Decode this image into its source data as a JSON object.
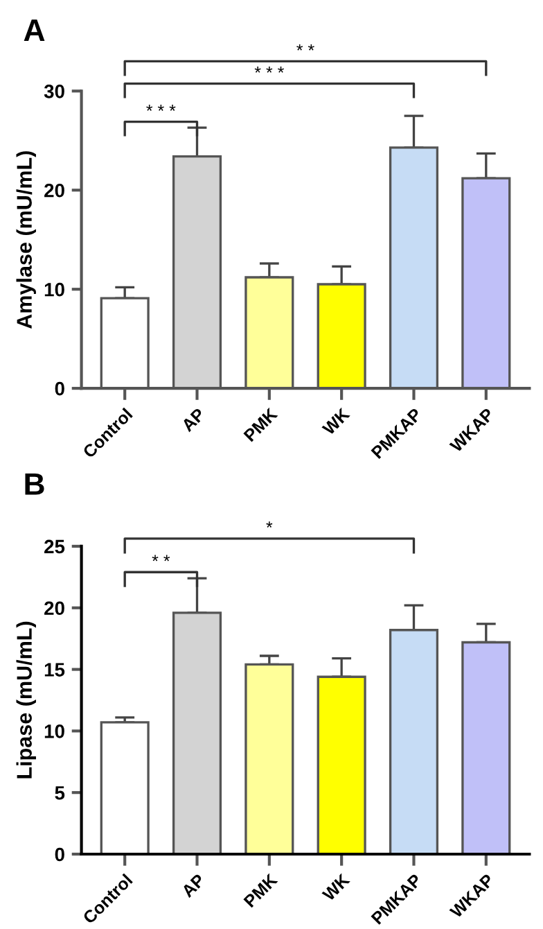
{
  "chart_data": [
    {
      "type": "bar",
      "title": "A",
      "ylabel": "Amylase (mU/mL)",
      "categories": [
        "Control",
        "AP",
        "PMK",
        "WK",
        "PMKAP",
        "WKAP"
      ],
      "values": [
        9.1,
        23.4,
        11.2,
        10.5,
        24.3,
        21.2
      ],
      "colors": [
        "#ffffff",
        "#d3d3d3",
        "#ffff99",
        "#ffff00",
        "#c6dcf5",
        "#c0c0f8"
      ],
      "errors": [
        [
          9.1,
          10.2
        ],
        [
          23.4,
          26.3
        ],
        [
          11.2,
          12.6
        ],
        [
          10.5,
          12.3
        ],
        [
          24.3,
          27.5
        ],
        [
          21.2,
          23.7
        ]
      ],
      "ylim": [
        0,
        30
      ],
      "yticks": [
        0,
        10,
        20,
        30
      ],
      "grid": false,
      "legend": false,
      "annotations": [
        "* * *",
        "* * *",
        "* *"
      ]
    },
    {
      "type": "bar",
      "title": "B",
      "ylabel": "Lipase (mU/mL)",
      "categories": [
        "Control",
        "AP",
        "PMK",
        "WK",
        "PMKAP",
        "WKAP"
      ],
      "values": [
        10.7,
        19.6,
        15.4,
        14.4,
        18.2,
        17.2
      ],
      "colors": [
        "#ffffff",
        "#d3d3d3",
        "#ffff99",
        "#ffff00",
        "#c6dcf5",
        "#c0c0f8"
      ],
      "errors": [
        [
          10.7,
          11.1
        ],
        [
          19.6,
          22.4
        ],
        [
          15.4,
          16.1
        ],
        [
          14.4,
          15.9
        ],
        [
          18.2,
          20.2
        ],
        [
          17.2,
          18.7
        ]
      ],
      "ylim": [
        0,
        25
      ],
      "yticks": [
        0,
        5,
        10,
        15,
        20,
        25
      ],
      "grid": false,
      "legend": false,
      "annotations": [
        "* *",
        "*"
      ]
    }
  ]
}
